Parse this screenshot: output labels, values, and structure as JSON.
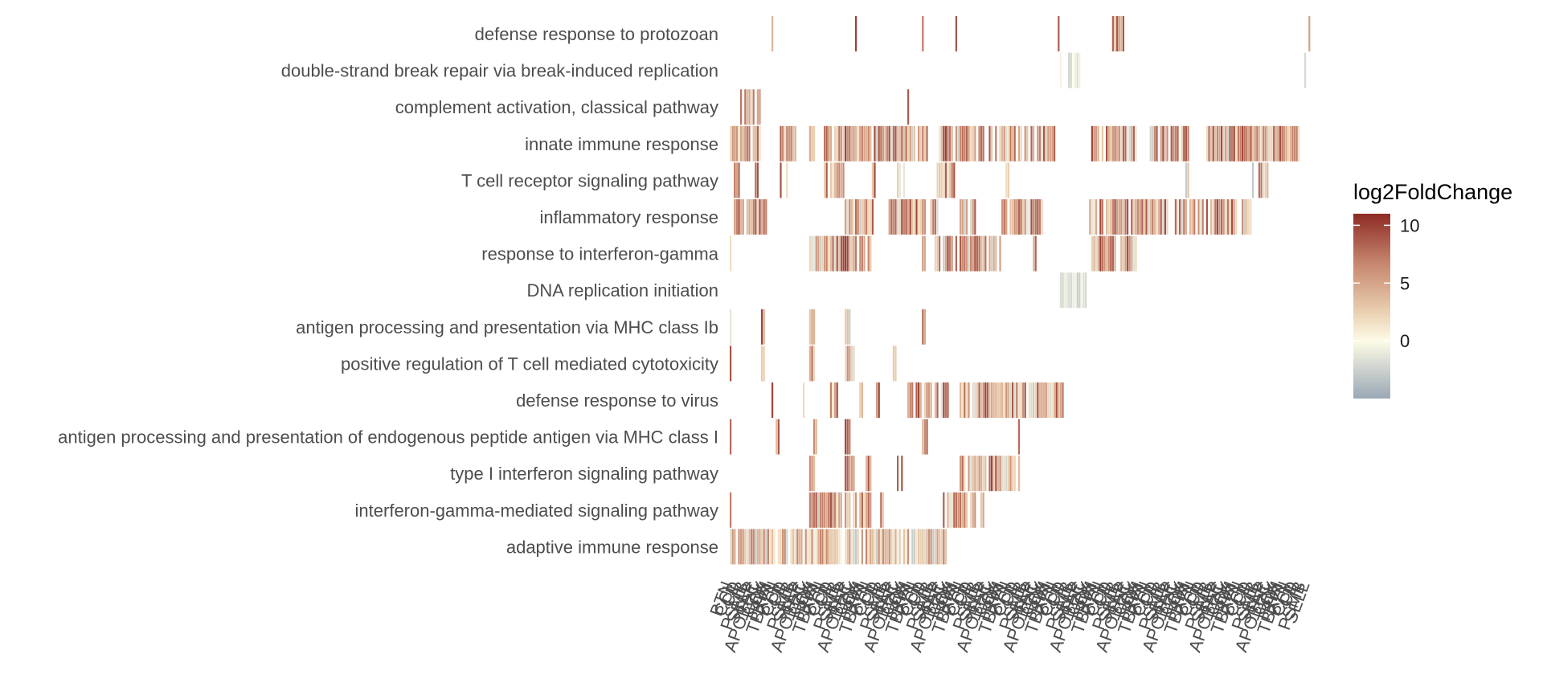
{
  "chart_data": {
    "type": "heatmap",
    "title": "",
    "xlabel": "",
    "ylabel": "",
    "rows": [
      "defense response to protozoan",
      "double-strand break repair via break-induced replication",
      "complement activation, classical pathway",
      "innate immune response",
      "T cell receptor signaling pathway",
      "inflammatory response",
      "response to interferon-gamma",
      "DNA replication initiation",
      "antigen processing and presentation via MHC class Ib",
      "positive regulation of T cell mediated cytotoxicity",
      "defense response to virus",
      "antigen processing and presentation of endogenous peptide antigen via MHC class I",
      "type I interferon signaling pathway",
      "interferon-gamma-mediated signaling pathway",
      "adaptive immune response"
    ],
    "gene_axis_labels": [
      "BTN",
      "CCL",
      "CD",
      "IL",
      "PSMB",
      "SELL",
      "TAP",
      "APOBEC",
      "CAL",
      "CX",
      "TRIM",
      "TBX21"
    ],
    "n_gene_columns": 280,
    "row_spans": [
      {
        "row": 0,
        "cols": [
          [
            20,
            21
          ],
          [
            60,
            61
          ],
          [
            92,
            93
          ],
          [
            108,
            109
          ],
          [
            157,
            158
          ],
          [
            183,
            189
          ],
          [
            277,
            278
          ]
        ]
      },
      {
        "row": 1,
        "cols": [
          [
            158,
            159
          ],
          [
            162,
            168
          ],
          [
            275,
            276
          ]
        ]
      },
      {
        "row": 2,
        "cols": [
          [
            5,
            15
          ],
          [
            85,
            86
          ]
        ]
      },
      {
        "row": 3,
        "cols": [
          [
            0,
            15
          ],
          [
            24,
            32
          ],
          [
            38,
            41
          ],
          [
            45,
            95
          ],
          [
            100,
            156
          ],
          [
            173,
            195
          ],
          [
            200,
            220
          ],
          [
            228,
            273
          ]
        ]
      },
      {
        "row": 4,
        "cols": [
          [
            2,
            5
          ],
          [
            12,
            14
          ],
          [
            24,
            28
          ],
          [
            45,
            55
          ],
          [
            68,
            70
          ],
          [
            80,
            84
          ],
          [
            98,
            108
          ],
          [
            132,
            134
          ],
          [
            218,
            220
          ],
          [
            250,
            258
          ]
        ]
      },
      {
        "row": 5,
        "cols": [
          [
            0,
            18
          ],
          [
            55,
            70
          ],
          [
            75,
            100
          ],
          [
            110,
            118
          ],
          [
            130,
            150
          ],
          [
            172,
            250
          ]
        ]
      },
      {
        "row": 6,
        "cols": [
          [
            0,
            1
          ],
          [
            38,
            68
          ],
          [
            92,
            94
          ],
          [
            98,
            130
          ],
          [
            145,
            147
          ],
          [
            173,
            195
          ]
        ]
      },
      {
        "row": 7,
        "cols": [
          [
            158,
            172
          ]
        ]
      },
      {
        "row": 8,
        "cols": [
          [
            0,
            1
          ],
          [
            15,
            17
          ],
          [
            38,
            41
          ],
          [
            55,
            58
          ],
          [
            92,
            94
          ]
        ]
      },
      {
        "row": 9,
        "cols": [
          [
            0,
            1
          ],
          [
            15,
            17
          ],
          [
            38,
            41
          ],
          [
            55,
            60
          ],
          [
            78,
            80
          ]
        ]
      },
      {
        "row": 10,
        "cols": [
          [
            20,
            21
          ],
          [
            35,
            36
          ],
          [
            48,
            52
          ],
          [
            62,
            64
          ],
          [
            70,
            72
          ],
          [
            85,
            105
          ],
          [
            110,
            160
          ]
        ]
      },
      {
        "row": 11,
        "cols": [
          [
            0,
            1
          ],
          [
            22,
            24
          ],
          [
            38,
            42
          ],
          [
            55,
            58
          ],
          [
            92,
            96
          ],
          [
            138,
            139
          ]
        ]
      },
      {
        "row": 12,
        "cols": [
          [
            38,
            41
          ],
          [
            55,
            60
          ],
          [
            65,
            68
          ],
          [
            80,
            84
          ],
          [
            110,
            140
          ]
        ]
      },
      {
        "row": 13,
        "cols": [
          [
            0,
            1
          ],
          [
            38,
            68
          ],
          [
            72,
            74
          ],
          [
            102,
            122
          ]
        ]
      },
      {
        "row": 14,
        "cols": [
          [
            0,
            104
          ]
        ]
      }
    ],
    "color_scale": {
      "label": "log2FoldChange",
      "ticks": [
        10,
        5,
        0
      ],
      "min": -5,
      "max": 11,
      "colors": [
        "#9aa8b5",
        "#fdfbe6",
        "#e6c7a8",
        "#c88a72",
        "#8e2b24"
      ]
    }
  }
}
